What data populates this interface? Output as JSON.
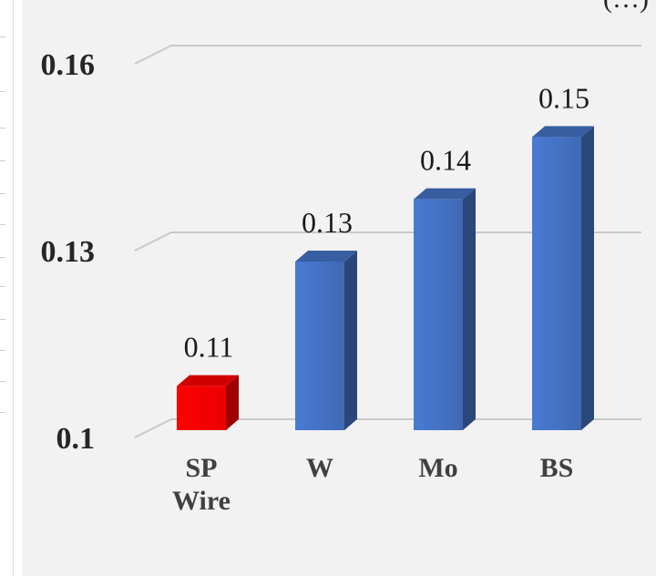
{
  "header": {
    "corner_text": "(…)"
  },
  "chart_data": {
    "type": "bar",
    "categories": [
      "SP Wire",
      "W",
      "Mo",
      "BS"
    ],
    "category_lines": [
      [
        "SP",
        "Wire"
      ],
      [
        "W"
      ],
      [
        "Mo"
      ],
      [
        "BS"
      ]
    ],
    "values": [
      0.11,
      0.13,
      0.14,
      0.15
    ],
    "data_labels": [
      "0.11",
      "0.13",
      "0.14",
      "0.15"
    ],
    "ylim": [
      0.1,
      0.16
    ],
    "yticks": [
      0.1,
      0.13,
      0.16
    ],
    "ytick_labels": [
      "0.1",
      "0.13",
      "0.16"
    ],
    "bar_colors": [
      "#ff0000",
      "#4472c4",
      "#4472c4",
      "#4472c4"
    ],
    "grid": true,
    "style": "3d-column"
  }
}
